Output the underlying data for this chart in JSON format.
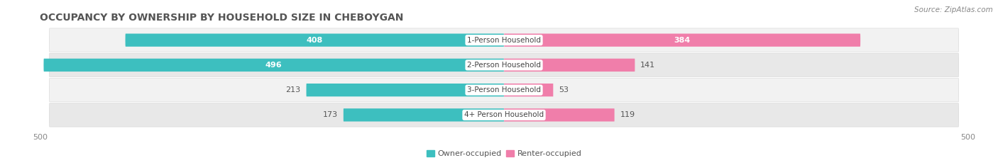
{
  "title": "OCCUPANCY BY OWNERSHIP BY HOUSEHOLD SIZE IN CHEBOYGAN",
  "source": "Source: ZipAtlas.com",
  "categories": [
    "1-Person Household",
    "2-Person Household",
    "3-Person Household",
    "4+ Person Household"
  ],
  "owner_values": [
    408,
    496,
    213,
    173
  ],
  "renter_values": [
    384,
    141,
    53,
    119
  ],
  "owner_color": "#3DBFBF",
  "renter_color": "#F07EAA",
  "row_bg_light": "#F2F2F2",
  "row_bg_dark": "#E8E8E8",
  "axis_max": 500,
  "bar_height": 0.52,
  "title_fontsize": 10,
  "value_fontsize_in": 8,
  "value_fontsize_out": 8,
  "cat_fontsize": 7.5,
  "tick_fontsize": 8,
  "legend_fontsize": 8,
  "source_fontsize": 7.5
}
